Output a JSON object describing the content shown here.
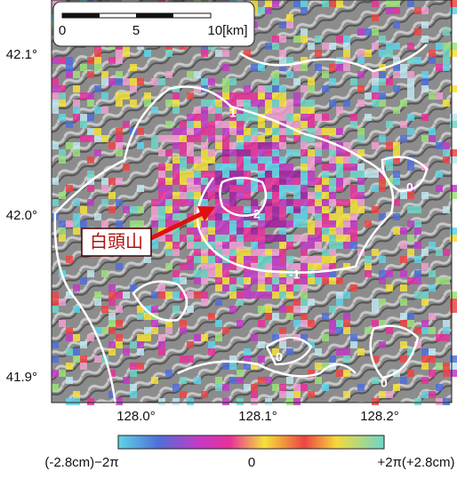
{
  "scale_bar": {
    "labels": [
      "0",
      "5",
      "10[km]"
    ]
  },
  "lat_labels": [
    "42.1°",
    "42.0°",
    "41.9°"
  ],
  "lon_labels": [
    "128.0°",
    "128.1°",
    "128.2°"
  ],
  "place_label": "白頭山",
  "contour_labels": [
    "1",
    "2",
    "0",
    "-1",
    "0",
    "0"
  ],
  "colorbar": {
    "labels": [
      "(-2.8cm)−2π",
      "0",
      "+2π(+2.8cm)"
    ]
  }
}
